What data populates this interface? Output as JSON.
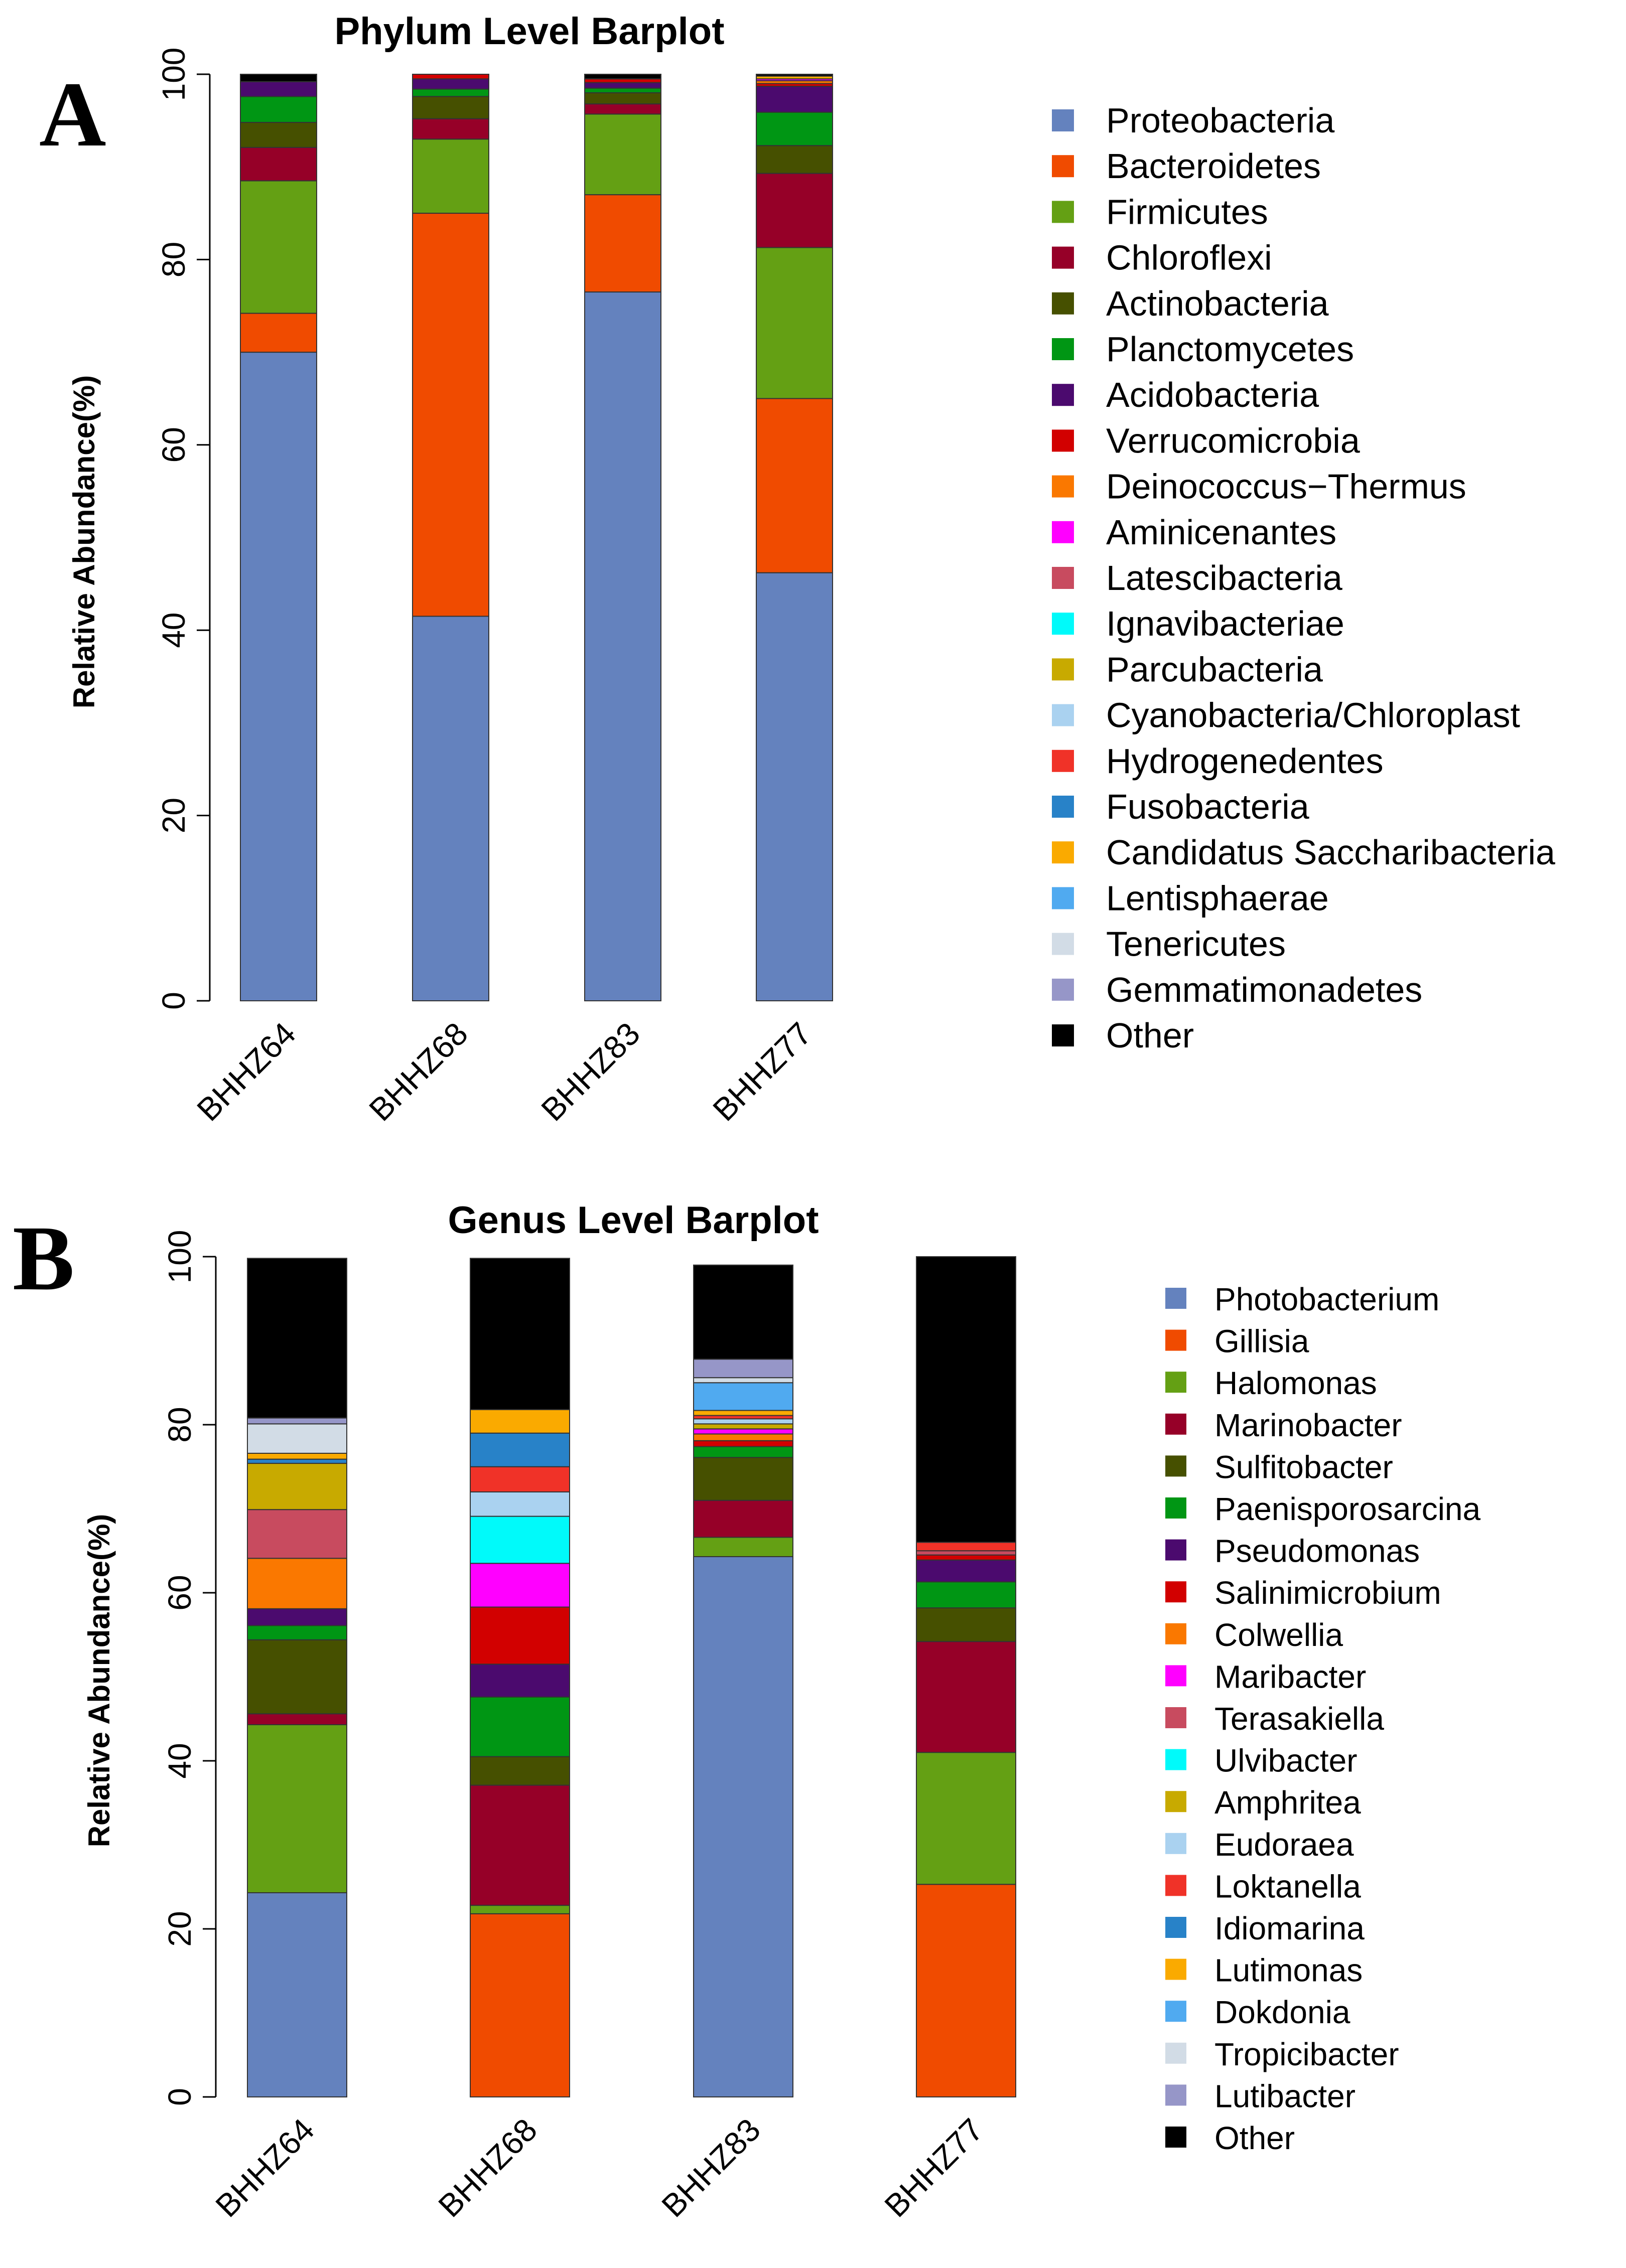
{
  "chart_data": [
    {
      "panel": "A",
      "type": "bar",
      "stacked": true,
      "title": "Phylum Level Barplot",
      "xlabel": "",
      "ylabel": "Relative Abundance(%)",
      "ylim": [
        0,
        100
      ],
      "yticks": [
        0,
        20,
        40,
        60,
        80,
        100
      ],
      "grid": false,
      "legend_position": "right",
      "categories": [
        "BHHZ64",
        "BHHZ68",
        "BHHZ83",
        "BHHZ77"
      ],
      "series": [
        {
          "name": "Proteobacteria",
          "color": "#6482BE",
          "values": [
            70,
            41.5,
            76.5,
            46.2
          ]
        },
        {
          "name": "Bacteroidetes",
          "color": "#F04B00",
          "values": [
            4.2,
            43.5,
            10.5,
            18.8
          ]
        },
        {
          "name": "Firmicutes",
          "color": "#64A014",
          "values": [
            14.3,
            8,
            8.7,
            16.3
          ]
        },
        {
          "name": "Chloroflexi",
          "color": "#960028",
          "values": [
            3.6,
            2.2,
            1.1,
            8
          ]
        },
        {
          "name": "Actinobacteria",
          "color": "#465000",
          "values": [
            2.7,
            2.4,
            1.2,
            3
          ]
        },
        {
          "name": "Planctomycetes",
          "color": "#009614",
          "values": [
            2.8,
            0.8,
            0.5,
            3.6
          ]
        },
        {
          "name": "Acidobacteria",
          "color": "#4B0A6E",
          "values": [
            1.6,
            1.1,
            0.6,
            2.8
          ]
        },
        {
          "name": "Verrucomicrobia",
          "color": "#D20000",
          "values": [
            0,
            0.5,
            0.4,
            0.3
          ]
        },
        {
          "name": "Deinococcus−Thermus",
          "color": "#FA7800",
          "values": [
            0,
            0,
            0,
            0.3
          ]
        },
        {
          "name": "Aminicenantes",
          "color": "#FF00FF",
          "values": [
            0,
            0,
            0,
            0.2
          ]
        },
        {
          "name": "Latescibacteria",
          "color": "#C84B5F",
          "values": [
            0,
            0,
            0,
            0
          ]
        },
        {
          "name": "Ignavibacteriae",
          "color": "#00FAFA",
          "values": [
            0,
            0,
            0,
            0
          ]
        },
        {
          "name": "Parcubacteria",
          "color": "#C8AA00",
          "values": [
            0,
            0,
            0,
            0
          ]
        },
        {
          "name": "Cyanobacteria/Chloroplast",
          "color": "#AAD2F0",
          "values": [
            0,
            0,
            0,
            0
          ]
        },
        {
          "name": "Hydrogenedentes",
          "color": "#F03228",
          "values": [
            0,
            0,
            0,
            0
          ]
        },
        {
          "name": "Fusobacteria",
          "color": "#2882C8",
          "values": [
            0,
            0,
            0,
            0
          ]
        },
        {
          "name": "Candidatus Saccharibacteria",
          "color": "#FAAA00",
          "values": [
            0,
            0,
            0,
            0.3
          ]
        },
        {
          "name": "Lentisphaerae",
          "color": "#50AAF0",
          "values": [
            0,
            0,
            0,
            0
          ]
        },
        {
          "name": "Tenericutes",
          "color": "#D2DCE6",
          "values": [
            0,
            0,
            0,
            0
          ]
        },
        {
          "name": "Gemmatimonadetes",
          "color": "#9696C8",
          "values": [
            0,
            0,
            0,
            0
          ]
        },
        {
          "name": "Other",
          "color": "#000000",
          "values": [
            0.8,
            0,
            0.5,
            0.2
          ]
        }
      ]
    },
    {
      "panel": "B",
      "type": "bar",
      "stacked": true,
      "title": "Genus Level Barplot",
      "xlabel": "",
      "ylabel": "Relative Abundance(%)",
      "ylim": [
        0,
        100
      ],
      "yticks": [
        0,
        20,
        40,
        60,
        80,
        100
      ],
      "grid": false,
      "legend_position": "right",
      "categories": [
        "BHHZ64",
        "BHHZ68",
        "BHHZ83",
        "BHHZ77"
      ],
      "series": [
        {
          "name": "Photobacterium",
          "color": "#6482BE",
          "values": [
            24.3,
            0,
            64.3,
            0
          ]
        },
        {
          "name": "Gillisia",
          "color": "#F04B00",
          "values": [
            0,
            21.8,
            0,
            25.3
          ]
        },
        {
          "name": "Halomonas",
          "color": "#64A014",
          "values": [
            20,
            1,
            2.3,
            15.7
          ]
        },
        {
          "name": "Marinobacter",
          "color": "#960028",
          "values": [
            1.3,
            14.3,
            4.4,
            13.2
          ]
        },
        {
          "name": "Sulfitobacter",
          "color": "#465000",
          "values": [
            8.8,
            3.4,
            5.1,
            4
          ]
        },
        {
          "name": "Paenisporosarcina",
          "color": "#009614",
          "values": [
            1.7,
            7.1,
            1.3,
            3.1
          ]
        },
        {
          "name": "Pseudomonas",
          "color": "#4B0A6E",
          "values": [
            2,
            3.9,
            0,
            2.6
          ]
        },
        {
          "name": "Salinimicrobium",
          "color": "#D20000",
          "values": [
            0,
            6.8,
            0.7,
            0.6
          ]
        },
        {
          "name": "Colwellia",
          "color": "#FA7800",
          "values": [
            6,
            0,
            0.8,
            0
          ]
        },
        {
          "name": "Maribacter",
          "color": "#FF00FF",
          "values": [
            0,
            5.2,
            0.6,
            0
          ]
        },
        {
          "name": "Terasakiella",
          "color": "#C84B5F",
          "values": [
            5.8,
            0,
            0,
            0.5
          ]
        },
        {
          "name": "Ulvibacter",
          "color": "#00FAFA",
          "values": [
            0,
            5.6,
            0,
            0
          ]
        },
        {
          "name": "Amphritea",
          "color": "#C8AA00",
          "values": [
            5.5,
            0,
            0.6,
            0
          ]
        },
        {
          "name": "Eudoraea",
          "color": "#AAD2F0",
          "values": [
            0,
            2.9,
            0.6,
            0
          ]
        },
        {
          "name": "Loktanella",
          "color": "#F03228",
          "values": [
            0,
            3,
            0.4,
            1
          ]
        },
        {
          "name": "Idiomarina",
          "color": "#2882C8",
          "values": [
            0.5,
            4,
            0,
            0
          ]
        },
        {
          "name": "Lutimonas",
          "color": "#FAAA00",
          "values": [
            0.7,
            2.8,
            0.6,
            0
          ]
        },
        {
          "name": "Dokdonia",
          "color": "#50AAF0",
          "values": [
            0,
            0,
            3.3,
            0
          ]
        },
        {
          "name": "Tropicibacter",
          "color": "#D2DCE6",
          "values": [
            3.5,
            0,
            0.6,
            0
          ]
        },
        {
          "name": "Lutibacter",
          "color": "#9696C8",
          "values": [
            0.7,
            0,
            2.2,
            0
          ]
        },
        {
          "name": "Other",
          "color": "#000000",
          "values": [
            19,
            18,
            11.2,
            34
          ]
        }
      ]
    }
  ],
  "panels": {
    "a_letter": "A",
    "b_letter": "B"
  }
}
